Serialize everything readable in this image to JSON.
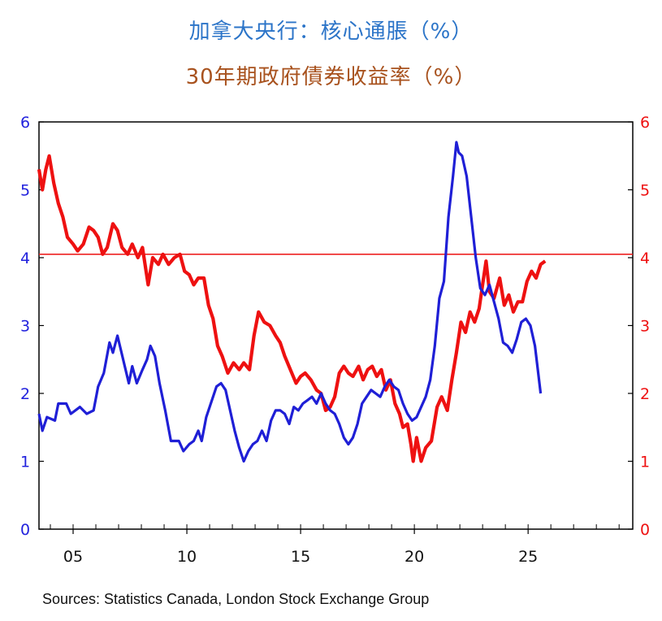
{
  "title": "加拿大央行：核心通脹（%）",
  "subtitle": "30年期政府債券收益率（%）",
  "source": "Sources:  Statistics Canada, London Stock Exchange Group",
  "colors": {
    "inflation": "#1f1fd6",
    "yield": "#ee1111",
    "left_axis": "#2222dd",
    "right_axis": "#ee1111",
    "reference_line": "#ee2222",
    "title": "#2b74c8",
    "subtitle": "#a8521e"
  },
  "chart_data": {
    "type": "line",
    "title": "加拿大央行：核心通脹（%）",
    "subtitle": "30年期政府債券收益率（%）",
    "xlabel": "",
    "ylabel": "",
    "xlim": [
      2003.5,
      2029.6
    ],
    "ylim_left": [
      0,
      6
    ],
    "ylim_right": [
      0,
      6
    ],
    "x_ticks": [
      2005,
      2010,
      2015,
      2020,
      2025
    ],
    "x_tick_labels": [
      "05",
      "10",
      "15",
      "20",
      "25"
    ],
    "y_ticks": [
      0,
      1,
      2,
      3,
      4,
      5,
      6
    ],
    "y_tick_labels": [
      "0",
      "1",
      "2",
      "3",
      "4",
      "5",
      "6"
    ],
    "grid": false,
    "reference_lines": [
      {
        "axis": "right",
        "y": 4.05
      }
    ],
    "series": [
      {
        "axis": "left",
        "points": [
          [
            2003.5,
            1.7
          ],
          [
            2003.65,
            1.45
          ],
          [
            2003.85,
            1.65
          ],
          [
            2004.2,
            1.6
          ],
          [
            2004.35,
            1.85
          ],
          [
            2004.7,
            1.85
          ],
          [
            2004.9,
            1.7
          ],
          [
            2005.3,
            1.8
          ],
          [
            2005.6,
            1.7
          ],
          [
            2005.9,
            1.75
          ],
          [
            2006.1,
            2.1
          ],
          [
            2006.35,
            2.3
          ],
          [
            2006.6,
            2.75
          ],
          [
            2006.75,
            2.6
          ],
          [
            2006.95,
            2.85
          ],
          [
            2007.2,
            2.5
          ],
          [
            2007.45,
            2.15
          ],
          [
            2007.6,
            2.4
          ],
          [
            2007.8,
            2.15
          ],
          [
            2008.05,
            2.35
          ],
          [
            2008.25,
            2.5
          ],
          [
            2008.4,
            2.7
          ],
          [
            2008.6,
            2.55
          ],
          [
            2008.8,
            2.15
          ],
          [
            2009.05,
            1.75
          ],
          [
            2009.3,
            1.3
          ],
          [
            2009.65,
            1.3
          ],
          [
            2009.85,
            1.15
          ],
          [
            2010.1,
            1.25
          ],
          [
            2010.3,
            1.3
          ],
          [
            2010.5,
            1.45
          ],
          [
            2010.65,
            1.3
          ],
          [
            2010.85,
            1.65
          ],
          [
            2011.05,
            1.85
          ],
          [
            2011.3,
            2.1
          ],
          [
            2011.5,
            2.15
          ],
          [
            2011.7,
            2.05
          ],
          [
            2011.9,
            1.75
          ],
          [
            2012.1,
            1.45
          ],
          [
            2012.3,
            1.2
          ],
          [
            2012.5,
            1.0
          ],
          [
            2012.7,
            1.15
          ],
          [
            2012.9,
            1.25
          ],
          [
            2013.1,
            1.3
          ],
          [
            2013.3,
            1.45
          ],
          [
            2013.5,
            1.3
          ],
          [
            2013.7,
            1.6
          ],
          [
            2013.9,
            1.75
          ],
          [
            2014.1,
            1.75
          ],
          [
            2014.3,
            1.7
          ],
          [
            2014.5,
            1.55
          ],
          [
            2014.7,
            1.8
          ],
          [
            2014.9,
            1.75
          ],
          [
            2015.1,
            1.85
          ],
          [
            2015.3,
            1.9
          ],
          [
            2015.5,
            1.95
          ],
          [
            2015.7,
            1.85
          ],
          [
            2015.9,
            2.0
          ],
          [
            2016.1,
            1.85
          ],
          [
            2016.3,
            1.75
          ],
          [
            2016.5,
            1.7
          ],
          [
            2016.7,
            1.55
          ],
          [
            2016.9,
            1.35
          ],
          [
            2017.1,
            1.25
          ],
          [
            2017.3,
            1.35
          ],
          [
            2017.5,
            1.55
          ],
          [
            2017.7,
            1.85
          ],
          [
            2017.9,
            1.95
          ],
          [
            2018.1,
            2.05
          ],
          [
            2018.3,
            2.0
          ],
          [
            2018.5,
            1.95
          ],
          [
            2018.7,
            2.1
          ],
          [
            2018.9,
            2.2
          ],
          [
            2019.1,
            2.1
          ],
          [
            2019.3,
            2.05
          ],
          [
            2019.5,
            1.85
          ],
          [
            2019.7,
            1.7
          ],
          [
            2019.9,
            1.6
          ],
          [
            2020.1,
            1.65
          ],
          [
            2020.3,
            1.8
          ],
          [
            2020.5,
            1.95
          ],
          [
            2020.7,
            2.2
          ],
          [
            2020.9,
            2.7
          ],
          [
            2021.1,
            3.4
          ],
          [
            2021.3,
            3.65
          ],
          [
            2021.5,
            4.6
          ],
          [
            2021.7,
            5.2
          ],
          [
            2021.85,
            5.7
          ],
          [
            2021.95,
            5.55
          ],
          [
            2022.1,
            5.5
          ],
          [
            2022.3,
            5.2
          ],
          [
            2022.5,
            4.6
          ],
          [
            2022.7,
            4.0
          ],
          [
            2022.9,
            3.55
          ],
          [
            2023.1,
            3.45
          ],
          [
            2023.3,
            3.6
          ],
          [
            2023.5,
            3.35
          ],
          [
            2023.7,
            3.1
          ],
          [
            2023.9,
            2.75
          ],
          [
            2024.1,
            2.7
          ],
          [
            2024.3,
            2.6
          ],
          [
            2024.5,
            2.8
          ],
          [
            2024.7,
            3.05
          ],
          [
            2024.9,
            3.1
          ],
          [
            2025.1,
            3.0
          ],
          [
            2025.3,
            2.7
          ],
          [
            2025.55,
            2.0
          ]
        ]
      },
      {
        "axis": "right",
        "points": [
          [
            2003.5,
            5.3
          ],
          [
            2003.65,
            5.0
          ],
          [
            2003.8,
            5.3
          ],
          [
            2003.95,
            5.5
          ],
          [
            2004.15,
            5.1
          ],
          [
            2004.35,
            4.8
          ],
          [
            2004.55,
            4.6
          ],
          [
            2004.75,
            4.3
          ],
          [
            2005.0,
            4.2
          ],
          [
            2005.2,
            4.1
          ],
          [
            2005.45,
            4.2
          ],
          [
            2005.7,
            4.45
          ],
          [
            2005.9,
            4.4
          ],
          [
            2006.1,
            4.3
          ],
          [
            2006.3,
            4.05
          ],
          [
            2006.5,
            4.15
          ],
          [
            2006.75,
            4.5
          ],
          [
            2006.95,
            4.4
          ],
          [
            2007.15,
            4.15
          ],
          [
            2007.4,
            4.05
          ],
          [
            2007.6,
            4.2
          ],
          [
            2007.85,
            4.0
          ],
          [
            2008.05,
            4.15
          ],
          [
            2008.3,
            3.6
          ],
          [
            2008.5,
            4.0
          ],
          [
            2008.75,
            3.9
          ],
          [
            2008.95,
            4.05
          ],
          [
            2009.2,
            3.9
          ],
          [
            2009.45,
            4.0
          ],
          [
            2009.7,
            4.05
          ],
          [
            2009.9,
            3.8
          ],
          [
            2010.1,
            3.75
          ],
          [
            2010.3,
            3.6
          ],
          [
            2010.5,
            3.7
          ],
          [
            2010.75,
            3.7
          ],
          [
            2010.95,
            3.3
          ],
          [
            2011.15,
            3.1
          ],
          [
            2011.35,
            2.7
          ],
          [
            2011.55,
            2.55
          ],
          [
            2011.8,
            2.3
          ],
          [
            2012.05,
            2.45
          ],
          [
            2012.3,
            2.35
          ],
          [
            2012.5,
            2.45
          ],
          [
            2012.75,
            2.35
          ],
          [
            2012.95,
            2.85
          ],
          [
            2013.15,
            3.2
          ],
          [
            2013.4,
            3.05
          ],
          [
            2013.65,
            3.0
          ],
          [
            2013.9,
            2.85
          ],
          [
            2014.1,
            2.75
          ],
          [
            2014.3,
            2.55
          ],
          [
            2014.55,
            2.35
          ],
          [
            2014.8,
            2.15
          ],
          [
            2015.0,
            2.25
          ],
          [
            2015.2,
            2.3
          ],
          [
            2015.45,
            2.2
          ],
          [
            2015.7,
            2.05
          ],
          [
            2015.9,
            2.0
          ],
          [
            2016.1,
            1.75
          ],
          [
            2016.3,
            1.8
          ],
          [
            2016.5,
            1.95
          ],
          [
            2016.7,
            2.3
          ],
          [
            2016.9,
            2.4
          ],
          [
            2017.1,
            2.3
          ],
          [
            2017.3,
            2.25
          ],
          [
            2017.55,
            2.4
          ],
          [
            2017.75,
            2.2
          ],
          [
            2017.95,
            2.35
          ],
          [
            2018.15,
            2.4
          ],
          [
            2018.35,
            2.25
          ],
          [
            2018.55,
            2.35
          ],
          [
            2018.75,
            2.05
          ],
          [
            2018.95,
            2.2
          ],
          [
            2019.15,
            1.85
          ],
          [
            2019.35,
            1.7
          ],
          [
            2019.5,
            1.5
          ],
          [
            2019.7,
            1.55
          ],
          [
            2019.85,
            1.25
          ],
          [
            2019.95,
            1.0
          ],
          [
            2020.1,
            1.35
          ],
          [
            2020.3,
            1.0
          ],
          [
            2020.5,
            1.2
          ],
          [
            2020.75,
            1.3
          ],
          [
            2021.0,
            1.8
          ],
          [
            2021.2,
            1.95
          ],
          [
            2021.45,
            1.75
          ],
          [
            2021.65,
            2.2
          ],
          [
            2021.85,
            2.6
          ],
          [
            2022.05,
            3.05
          ],
          [
            2022.25,
            2.9
          ],
          [
            2022.45,
            3.2
          ],
          [
            2022.65,
            3.05
          ],
          [
            2022.85,
            3.25
          ],
          [
            2023.0,
            3.6
          ],
          [
            2023.15,
            3.95
          ],
          [
            2023.3,
            3.5
          ],
          [
            2023.5,
            3.4
          ],
          [
            2023.75,
            3.7
          ],
          [
            2023.95,
            3.3
          ],
          [
            2024.15,
            3.45
          ],
          [
            2024.35,
            3.2
          ],
          [
            2024.55,
            3.35
          ],
          [
            2024.75,
            3.35
          ],
          [
            2024.95,
            3.65
          ],
          [
            2025.15,
            3.8
          ],
          [
            2025.35,
            3.7
          ],
          [
            2025.55,
            3.9
          ],
          [
            2025.75,
            3.95
          ]
        ]
      }
    ]
  }
}
